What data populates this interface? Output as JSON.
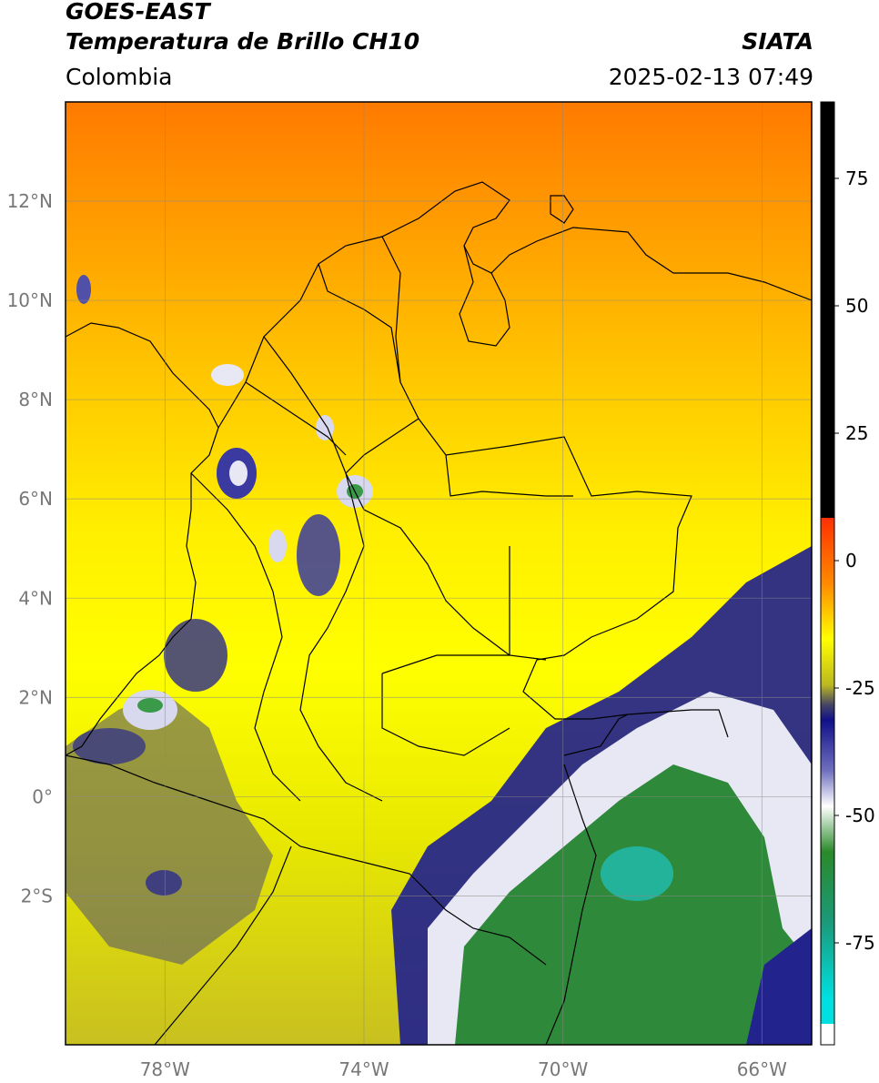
{
  "header": {
    "satellite": "GOES-EAST",
    "product": "Temperatura de Brillo CH10",
    "organization": "SIATA",
    "region": "Colombia",
    "datetime": "2025-02-13 07:49"
  },
  "map": {
    "lat_labels": [
      "12°N",
      "10°N",
      "8°N",
      "6°N",
      "4°N",
      "2°N",
      "0°",
      "2°S"
    ],
    "lat_values": [
      12,
      10,
      8,
      6,
      4,
      2,
      0,
      -2
    ],
    "lon_labels": [
      "78°W",
      "74°W",
      "70°W",
      "66°W"
    ],
    "lon_values": [
      -78,
      -74,
      -70,
      -66
    ],
    "extent": {
      "lon_min": -80,
      "lon_max": -65,
      "lat_min": -5,
      "lat_max": 14
    }
  },
  "colorbar": {
    "tick_labels": [
      "75",
      "50",
      "25",
      "0",
      "-25",
      "-50",
      "-75"
    ],
    "tick_values": [
      75,
      50,
      25,
      0,
      -25,
      -50,
      -75
    ],
    "range": [
      -95,
      90
    ]
  },
  "colors": {
    "frame": "#000000",
    "grid": "#888888"
  }
}
